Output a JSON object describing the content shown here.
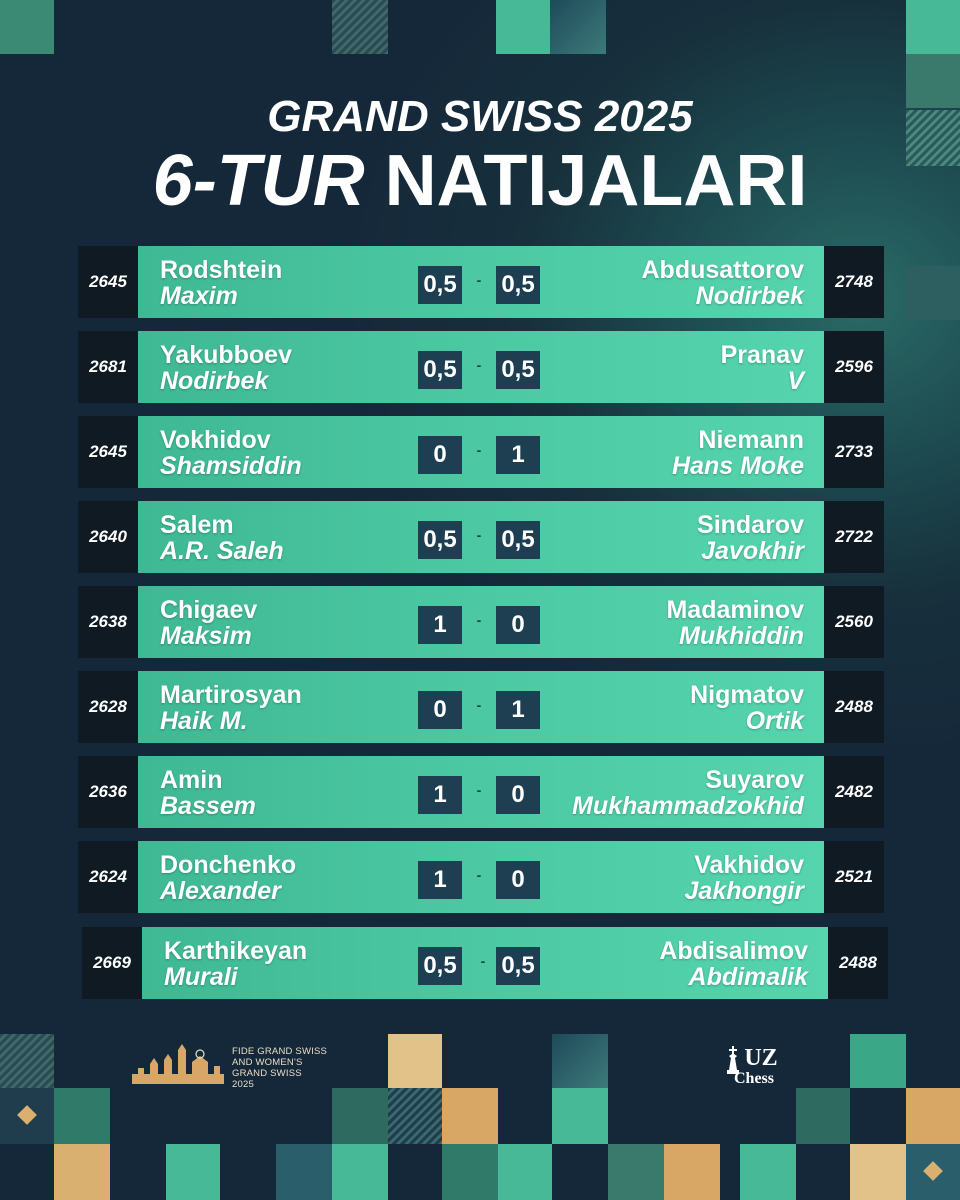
{
  "title": {
    "line1": "GRAND SWISS 2025",
    "line2_italic": "6-TUR",
    "line2_rest": "NATIJALARI"
  },
  "games": [
    {
      "white_elo": "2645",
      "white_first": "Rodshtein",
      "white_last": "Maxim",
      "white_score": "0,5",
      "separator": "-",
      "black_score": "0,5",
      "black_first": "Abdusattorov",
      "black_last": "Nodirbek",
      "black_elo": "2748"
    },
    {
      "white_elo": "2681",
      "white_first": "Yakubboev",
      "white_last": "Nodirbek",
      "white_score": "0,5",
      "separator": "-",
      "black_score": "0,5",
      "black_first": "Pranav",
      "black_last": "V",
      "black_elo": "2596"
    },
    {
      "white_elo": "2645",
      "white_first": "Vokhidov",
      "white_last": "Shamsiddin",
      "white_score": "0",
      "separator": "-",
      "black_score": "1",
      "black_first": "Niemann",
      "black_last": "Hans Moke",
      "black_elo": "2733"
    },
    {
      "white_elo": "2640",
      "white_first": "Salem",
      "white_last": "A.R. Saleh",
      "white_score": "0,5",
      "separator": "-",
      "black_score": "0,5",
      "black_first": "Sindarov",
      "black_last": "Javokhir",
      "black_elo": "2722"
    },
    {
      "white_elo": "2638",
      "white_first": "Chigaev",
      "white_last": "Maksim",
      "white_score": "1",
      "separator": "-",
      "black_score": "0",
      "black_first": "Madaminov",
      "black_last": "Mukhiddin",
      "black_elo": "2560"
    },
    {
      "white_elo": "2628",
      "white_first": "Martirosyan",
      "white_last": "Haik M.",
      "white_score": "0",
      "separator": "-",
      "black_score": "1",
      "black_first": "Nigmatov",
      "black_last": "Ortik",
      "black_elo": "2488"
    },
    {
      "white_elo": "2636",
      "white_first": "Amin",
      "white_last": "Bassem",
      "white_score": "1",
      "separator": "-",
      "black_score": "0",
      "black_first": "Suyarov",
      "black_last": "Mukhammadzokhid",
      "black_elo": "2482"
    },
    {
      "white_elo": "2624",
      "white_first": "Donchenko",
      "white_last": "Alexander",
      "white_score": "1",
      "separator": "-",
      "black_score": "0",
      "black_first": "Vakhidov",
      "black_last": "Jakhongir",
      "black_elo": "2521"
    },
    {
      "white_elo": "2669",
      "white_first": "Karthikeyan",
      "white_last": "Murali",
      "white_score": "0,5",
      "separator": "-",
      "black_score": "0,5",
      "black_first": "Abdisalimov",
      "black_last": "Abdimalik",
      "black_elo": "2488"
    }
  ],
  "footer": {
    "event_logo_lines": [
      "FIDE GRAND SWISS",
      "AND WOMEN'S",
      "GRAND SWISS",
      "2025"
    ],
    "brand_line1": "UZ",
    "brand_line2": "Chess",
    "brand_icon": "chess-king-icon",
    "event_icon": "city-skyline-icon"
  },
  "colors": {
    "background": "#17303c",
    "accent_green": "#4cc9a2",
    "score_box": "#1e3f52",
    "elo_box": "#0f1a22",
    "gold": "#d9b06f"
  }
}
